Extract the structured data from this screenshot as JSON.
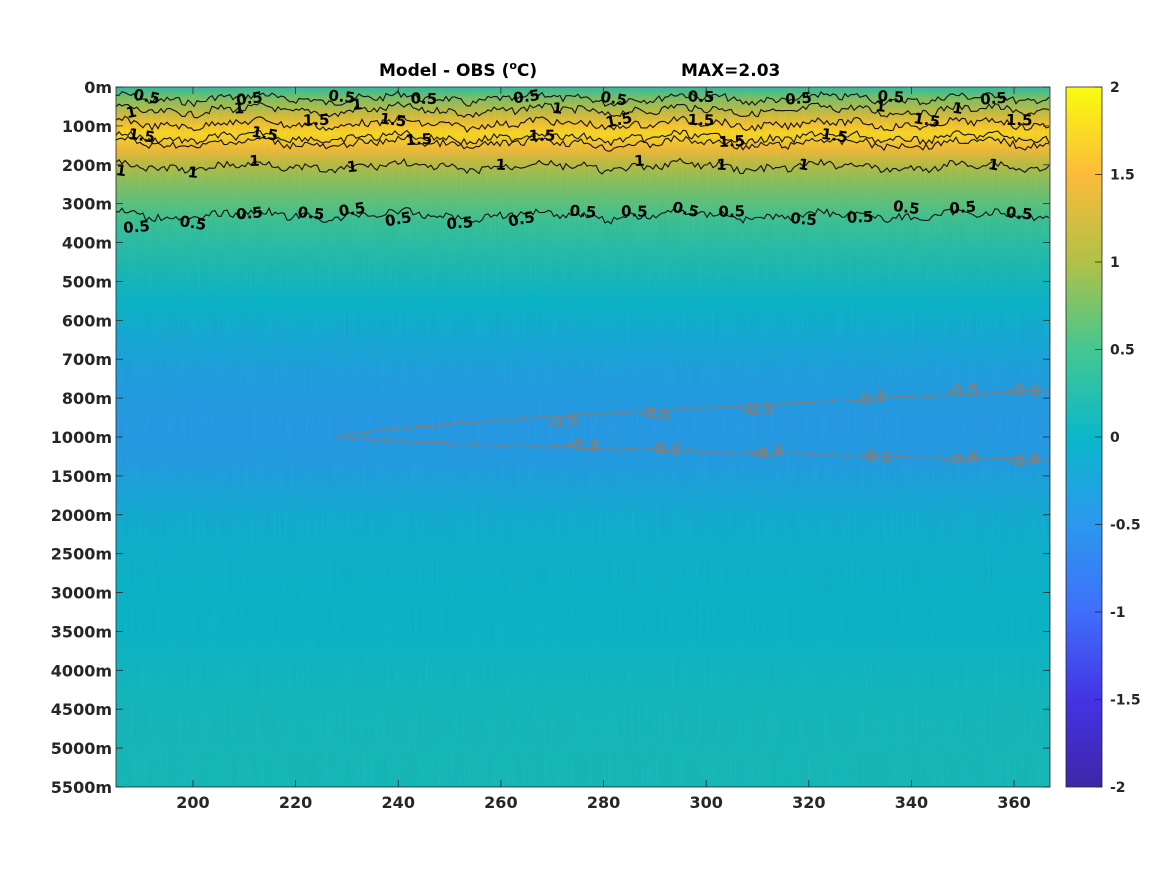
{
  "chart_data": {
    "type": "heatmap",
    "title": "Model - OBS (°C)",
    "title_main": "Model - OBS (",
    "title_sup": "o",
    "title_end": "C)",
    "max_text": "MAX=2.03",
    "x": {
      "min": 185,
      "max": 367,
      "ticks": [
        200,
        220,
        240,
        260,
        280,
        300,
        320,
        340,
        360
      ],
      "tick_labels": [
        "200",
        "220",
        "240",
        "260",
        "280",
        "300",
        "320",
        "340",
        "360"
      ]
    },
    "y": {
      "tick_labels": [
        "0m",
        "100m",
        "200m",
        "300m",
        "400m",
        "500m",
        "600m",
        "700m",
        "800m",
        "1000m",
        "1500m",
        "2000m",
        "2500m",
        "3000m",
        "3500m",
        "4000m",
        "4500m",
        "5000m",
        "5500m"
      ]
    },
    "colorbar": {
      "min": -2,
      "max": 2,
      "ticks": [
        2,
        1.5,
        1,
        0.5,
        0,
        -0.5,
        -1,
        -1.5,
        -2
      ],
      "tick_labels": [
        "2",
        "1.5",
        "1",
        "0.5",
        "0",
        "-0.5",
        "-1",
        "-1.5",
        "-2"
      ],
      "colormap": "parula"
    },
    "depth_profile": {
      "depth_index": [
        0,
        0.3,
        0.7,
        1.0,
        1.2,
        1.6,
        2.0,
        2.5,
        3.0,
        3.5,
        4.0,
        4.5,
        5.0,
        5.5,
        6.0,
        6.5,
        7.0,
        7.5,
        8.0,
        8.5,
        9.0,
        9.5,
        10,
        11,
        12,
        13,
        14,
        15,
        16,
        17,
        18
      ],
      "value": [
        0.3,
        0.8,
        1.2,
        1.6,
        1.75,
        1.45,
        1.05,
        0.8,
        0.62,
        0.42,
        0.3,
        0.2,
        0.1,
        0.0,
        -0.1,
        -0.2,
        -0.28,
        -0.35,
        -0.38,
        -0.42,
        -0.42,
        -0.4,
        -0.3,
        -0.15,
        -0.05,
        -0.02,
        0.0,
        0.05,
        0.1,
        0.12,
        0.12
      ]
    },
    "contours": [
      {
        "level": 0.5,
        "label": "0.5",
        "color": "#000000",
        "label_items": [
          {
            "x": 191,
            "d": 0.25,
            "t": "0.5"
          },
          {
            "x": 211,
            "d": 0.3,
            "t": "0.5"
          },
          {
            "x": 229,
            "d": 0.25,
            "t": "0.5"
          },
          {
            "x": 245,
            "d": 0.3,
            "t": "0.5"
          },
          {
            "x": 265,
            "d": 0.25,
            "t": "0.5"
          },
          {
            "x": 282,
            "d": 0.3,
            "t": "0.5"
          },
          {
            "x": 299,
            "d": 0.25,
            "t": "0.5"
          },
          {
            "x": 318,
            "d": 0.3,
            "t": "0.5"
          },
          {
            "x": 336,
            "d": 0.25,
            "t": "0.5"
          },
          {
            "x": 356,
            "d": 0.3,
            "t": "0.5"
          }
        ]
      },
      {
        "level": 1,
        "label": "1",
        "color": "#000000",
        "label_items": [
          {
            "x": 188,
            "d": 0.65,
            "t": "1"
          },
          {
            "x": 209,
            "d": 0.55,
            "t": "1"
          },
          {
            "x": 232,
            "d": 0.45,
            "t": "1"
          },
          {
            "x": 271,
            "d": 0.55,
            "t": "1"
          },
          {
            "x": 334,
            "d": 0.5,
            "t": "1"
          },
          {
            "x": 349,
            "d": 0.55,
            "t": "1"
          }
        ]
      },
      {
        "level": 1.5,
        "label": "1.5",
        "color": "#000000",
        "label_items": [
          {
            "x": 190,
            "d": 1.25,
            "t": "1.5"
          },
          {
            "x": 214,
            "d": 1.2,
            "t": "1.5"
          },
          {
            "x": 224,
            "d": 0.85,
            "t": "1.5"
          },
          {
            "x": 239,
            "d": 0.85,
            "t": "1.5"
          },
          {
            "x": 244,
            "d": 1.35,
            "t": "1.5"
          },
          {
            "x": 268,
            "d": 1.25,
            "t": "1.5"
          },
          {
            "x": 283,
            "d": 0.85,
            "t": "1.5"
          },
          {
            "x": 299,
            "d": 0.85,
            "t": "1.5"
          },
          {
            "x": 305,
            "d": 1.4,
            "t": "1.5"
          },
          {
            "x": 325,
            "d": 1.25,
            "t": "1.5"
          },
          {
            "x": 343,
            "d": 0.85,
            "t": "1.5"
          },
          {
            "x": 361,
            "d": 0.85,
            "t": "1.5"
          }
        ]
      },
      {
        "level": 1,
        "label": "1",
        "color": "#000000",
        "label_items": [
          {
            "x": 186,
            "d": 2.15,
            "t": "1"
          },
          {
            "x": 200,
            "d": 2.2,
            "t": "1"
          },
          {
            "x": 212,
            "d": 1.9,
            "t": "1"
          },
          {
            "x": 231,
            "d": 2.05,
            "t": "1"
          },
          {
            "x": 260,
            "d": 2.0,
            "t": "1"
          },
          {
            "x": 287,
            "d": 1.9,
            "t": "1"
          },
          {
            "x": 303,
            "d": 2.0,
            "t": "1"
          },
          {
            "x": 319,
            "d": 2.0,
            "t": "1"
          },
          {
            "x": 356,
            "d": 2.0,
            "t": "1"
          }
        ]
      },
      {
        "level": 0.5,
        "label": "0.5",
        "color": "#000000",
        "label_items": [
          {
            "x": 189,
            "d": 3.6,
            "t": "0.5"
          },
          {
            "x": 200,
            "d": 3.5,
            "t": "0.5"
          },
          {
            "x": 211,
            "d": 3.25,
            "t": "0.5"
          },
          {
            "x": 223,
            "d": 3.25,
            "t": "0.5"
          },
          {
            "x": 231,
            "d": 3.15,
            "t": "0.5"
          },
          {
            "x": 240,
            "d": 3.4,
            "t": "0.5"
          },
          {
            "x": 252,
            "d": 3.5,
            "t": "0.5"
          },
          {
            "x": 264,
            "d": 3.4,
            "t": "0.5"
          },
          {
            "x": 276,
            "d": 3.2,
            "t": "0.5"
          },
          {
            "x": 286,
            "d": 3.2,
            "t": "0.5"
          },
          {
            "x": 296,
            "d": 3.15,
            "t": "0.5"
          },
          {
            "x": 305,
            "d": 3.2,
            "t": "0.5"
          },
          {
            "x": 319,
            "d": 3.4,
            "t": "0.5"
          },
          {
            "x": 330,
            "d": 3.35,
            "t": "0.5"
          },
          {
            "x": 339,
            "d": 3.1,
            "t": "0.5"
          },
          {
            "x": 350,
            "d": 3.1,
            "t": "0.5"
          },
          {
            "x": 361,
            "d": 3.25,
            "t": "0.5"
          }
        ]
      },
      {
        "level": -0.5,
        "label": "-0.5",
        "color": "#808080",
        "label_items": [
          {
            "x": 272,
            "d": 8.6,
            "t": "-0.5"
          },
          {
            "x": 290,
            "d": 8.4,
            "t": "-0.5"
          },
          {
            "x": 310,
            "d": 8.3,
            "t": "-0.5"
          },
          {
            "x": 332,
            "d": 8.0,
            "t": "-0.5"
          },
          {
            "x": 350,
            "d": 7.8,
            "t": "-0.5"
          },
          {
            "x": 362,
            "d": 7.8,
            "t": "-0.5"
          },
          {
            "x": 276,
            "d": 9.2,
            "t": "-0.5"
          },
          {
            "x": 292,
            "d": 9.3,
            "t": "-0.5"
          },
          {
            "x": 312,
            "d": 9.4,
            "t": "-0.5"
          },
          {
            "x": 333,
            "d": 9.5,
            "t": "-0.5"
          },
          {
            "x": 350,
            "d": 9.55,
            "t": "-0.5"
          },
          {
            "x": 362,
            "d": 9.6,
            "t": "-0.5"
          }
        ]
      }
    ]
  }
}
